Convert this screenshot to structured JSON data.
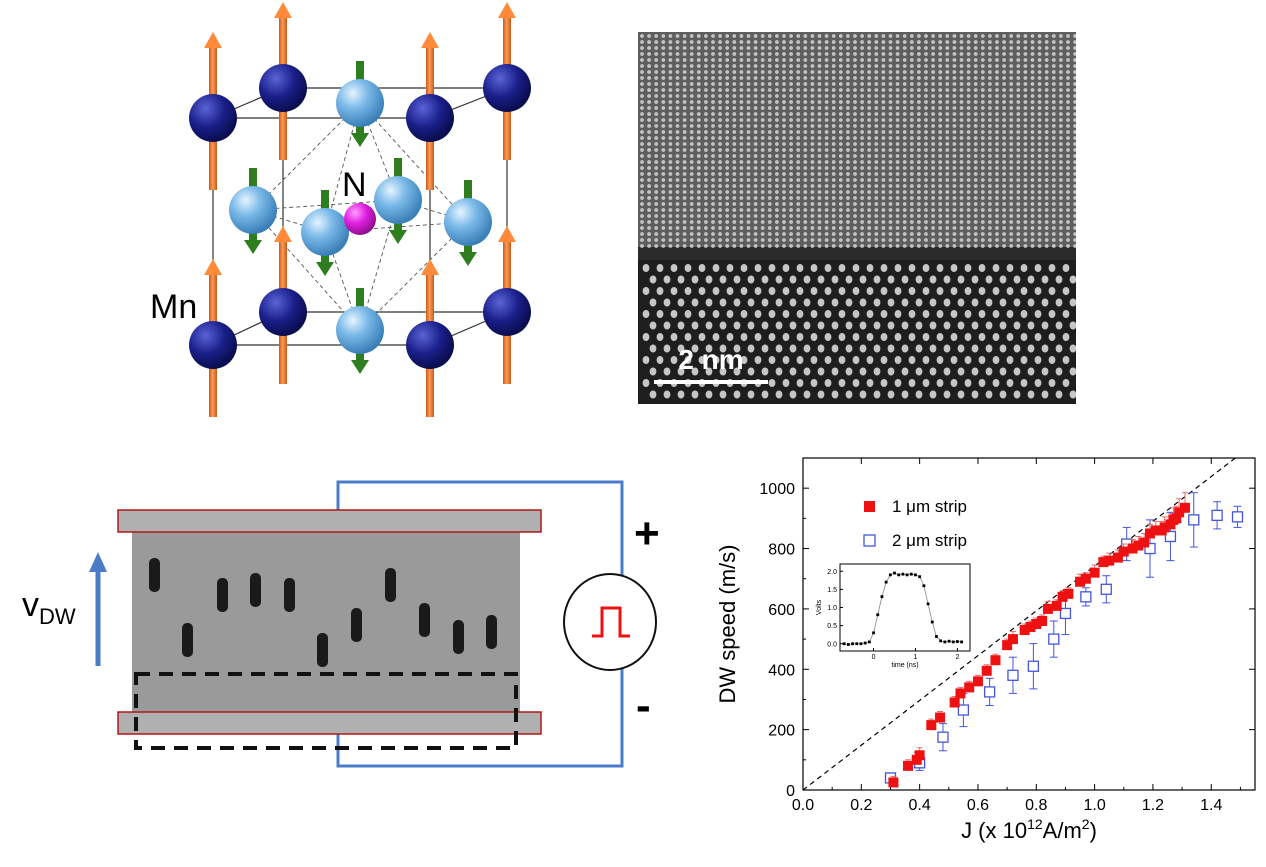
{
  "crystal": {
    "label_n": "N",
    "label_mn": "Mn"
  },
  "micrograph": {
    "scale_bar_label": "2 nm"
  },
  "device": {
    "velocity_label": "v",
    "velocity_subscript": "DW",
    "plus_label": "+",
    "minus_label": "-"
  },
  "chart_data": [
    {
      "type": "scatter",
      "xlabel": "J (x 10",
      "xlabel_sup": "12",
      "xlabel_tail": "A/m",
      "xlabel_sup2": "2",
      "xlabel_end": ")",
      "ylabel": "DW speed (m/s)",
      "xlim": [
        0.0,
        1.55
      ],
      "ylim": [
        0,
        1100
      ],
      "x_ticks": [
        0.0,
        0.2,
        0.4,
        0.6,
        0.8,
        1.0,
        1.2,
        1.4
      ],
      "x_tick_labels": [
        "0.0",
        "0.2",
        "0.4",
        "0.6",
        "0.8",
        "1.0",
        "1.2",
        "1.4"
      ],
      "y_ticks": [
        0,
        200,
        400,
        600,
        800,
        1000
      ],
      "y_tick_labels": [
        "0",
        "200",
        "400",
        "600",
        "800",
        "1000"
      ],
      "legend_position": "top-left",
      "series": [
        {
          "name": "1 μm strip",
          "marker": "filled-square",
          "color": "#ee1111",
          "x": [
            0.31,
            0.36,
            0.39,
            0.4,
            0.44,
            0.47,
            0.52,
            0.54,
            0.57,
            0.6,
            0.63,
            0.66,
            0.7,
            0.72,
            0.76,
            0.78,
            0.8,
            0.82,
            0.84,
            0.87,
            0.89,
            0.91,
            0.95,
            0.97,
            1.0,
            1.03,
            1.05,
            1.08,
            1.1,
            1.13,
            1.15,
            1.17,
            1.19,
            1.21,
            1.23,
            1.24,
            1.26,
            1.27,
            1.28,
            1.29,
            1.31
          ],
          "y": [
            25,
            80,
            100,
            115,
            215,
            240,
            290,
            320,
            340,
            360,
            395,
            430,
            480,
            500,
            530,
            540,
            550,
            560,
            600,
            610,
            640,
            650,
            690,
            700,
            720,
            755,
            760,
            770,
            790,
            800,
            810,
            820,
            850,
            860,
            860,
            870,
            880,
            895,
            900,
            920,
            935
          ],
          "error_top": [
            20,
            20,
            25,
            25,
            20,
            20,
            20,
            20,
            20,
            20,
            20,
            20,
            20,
            25,
            20,
            20,
            20,
            20,
            25,
            20,
            20,
            20,
            25,
            20,
            25,
            20,
            25,
            25,
            25,
            30,
            30,
            30,
            30,
            30,
            30,
            35,
            35,
            40,
            40,
            45,
            50
          ]
        },
        {
          "name": "2 μm strip",
          "marker": "open-square",
          "color": "#4455dd",
          "x": [
            0.3,
            0.4,
            0.48,
            0.55,
            0.64,
            0.72,
            0.79,
            0.86,
            0.9,
            0.97,
            1.04,
            1.11,
            1.19,
            1.26,
            1.34,
            1.42,
            1.49
          ],
          "y": [
            40,
            90,
            175,
            265,
            325,
            380,
            410,
            500,
            585,
            640,
            665,
            815,
            800,
            840,
            895,
            910,
            905
          ],
          "error": [
            15,
            25,
            45,
            55,
            45,
            60,
            75,
            60,
            70,
            30,
            45,
            55,
            95,
            80,
            90,
            45,
            35
          ]
        }
      ],
      "reference_line": {
        "style": "dashed",
        "x": [
          0.0,
          1.55
        ],
        "y": [
          0,
          1150
        ]
      },
      "inset": {
        "type": "line",
        "xlabel": "time (ns)",
        "ylabel": "Volts",
        "xlim": [
          -0.8,
          2.3
        ],
        "ylim": [
          -0.2,
          2.2
        ],
        "x_ticks": [
          0,
          1,
          2
        ],
        "x_tick_labels": [
          "0",
          "1",
          "2"
        ],
        "y_ticks": [
          0.0,
          0.5,
          1.0,
          1.5,
          2.0
        ],
        "y_tick_labels": [
          "0.0",
          "0.5",
          "1.0",
          "1.5",
          "2.0"
        ],
        "x": [
          -0.7,
          -0.6,
          -0.5,
          -0.4,
          -0.3,
          -0.2,
          -0.1,
          0.0,
          0.1,
          0.2,
          0.3,
          0.4,
          0.5,
          0.6,
          0.7,
          0.8,
          0.9,
          1.0,
          1.1,
          1.2,
          1.3,
          1.4,
          1.5,
          1.6,
          1.7,
          1.8,
          1.9,
          2.0,
          2.1
        ],
        "y": [
          0.0,
          -0.02,
          0.0,
          0.0,
          0.0,
          0.02,
          0.05,
          0.3,
          0.8,
          1.3,
          1.7,
          1.9,
          1.95,
          1.9,
          1.92,
          1.9,
          1.92,
          1.9,
          1.85,
          1.6,
          1.1,
          0.6,
          0.2,
          0.08,
          0.05,
          0.07,
          0.05,
          0.06,
          0.05
        ]
      }
    }
  ]
}
